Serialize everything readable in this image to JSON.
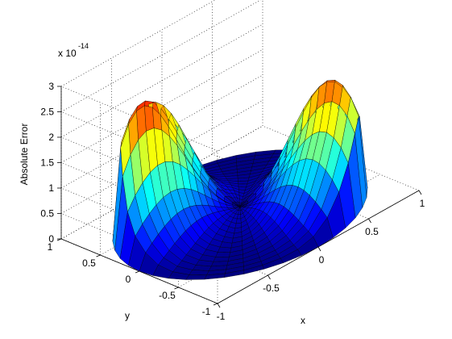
{
  "chart_data": {
    "type": "surface",
    "title": "",
    "xlabel": "x",
    "ylabel": "y",
    "zlabel": "Absolute Error",
    "z_exponent_label": "x 10",
    "z_exponent_power": "-14",
    "xlim": [
      -1,
      1
    ],
    "ylim": [
      -1,
      1
    ],
    "zlim": [
      0,
      3
    ],
    "x_ticks": [
      -1,
      -0.5,
      0,
      0.5,
      1
    ],
    "x_tick_labels": [
      "-1",
      "-0.5",
      "0",
      "0.5",
      "1"
    ],
    "y_ticks": [
      -1,
      -0.5,
      0,
      0.5,
      1
    ],
    "y_tick_labels": [
      "-1",
      "-0.5",
      "0",
      "0.5",
      "1"
    ],
    "z_ticks": [
      0,
      0.5,
      1,
      1.5,
      2,
      2.5,
      3
    ],
    "z_tick_labels": [
      "0",
      "0.5",
      "1",
      "1.5",
      "2",
      "2.5",
      "3"
    ],
    "grid": true,
    "colormap": "jet",
    "domain": "unit disk",
    "peaks": [
      {
        "x": -0.6,
        "y": 0.55,
        "z": 2.95
      },
      {
        "x": 0.6,
        "y": -0.55,
        "z": 2.75
      }
    ],
    "min_z": 0
  }
}
